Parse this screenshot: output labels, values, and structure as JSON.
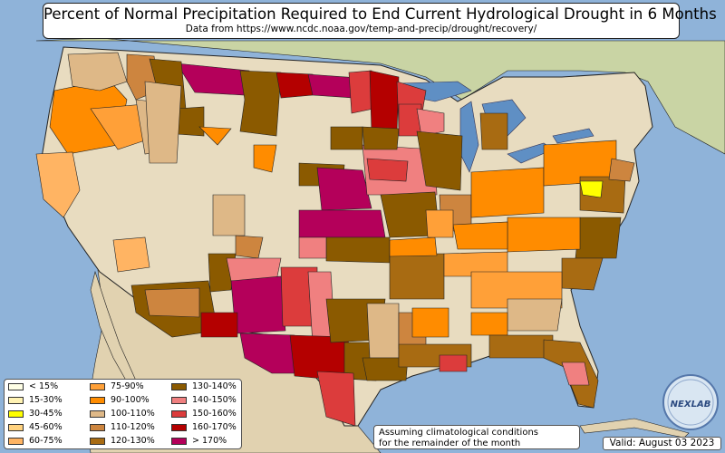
{
  "header": {
    "title": "Percent of Normal Precipitation Required to End Current Hydrological Drought in 6 Months",
    "subtitle": "Data from https://www.ncdc.noaa.gov/temp-and-precip/drought/recovery/"
  },
  "legend": {
    "items": [
      {
        "label": "< 15%",
        "color": "#ffffe6"
      },
      {
        "label": "15-30%",
        "color": "#fff2b3"
      },
      {
        "label": "30-45%",
        "color": "#ffff00"
      },
      {
        "label": "45-60%",
        "color": "#ffd27f"
      },
      {
        "label": "60-75%",
        "color": "#ffb463"
      },
      {
        "label": "75-90%",
        "color": "#ffa038"
      },
      {
        "label": "90-100%",
        "color": "#ff8c00"
      },
      {
        "label": "100-110%",
        "color": "#deb887"
      },
      {
        "label": "110-120%",
        "color": "#cd853f"
      },
      {
        "label": "120-130%",
        "color": "#a86b12"
      },
      {
        "label": "130-140%",
        "color": "#8b5a00"
      },
      {
        "label": "140-150%",
        "color": "#f08080"
      },
      {
        "label": "150-160%",
        "color": "#dc3c3c"
      },
      {
        "label": "160-170%",
        "color": "#b40000"
      },
      {
        "label": "> 170%",
        "color": "#b4005a"
      }
    ]
  },
  "note": {
    "line1": "Assuming climatological conditions",
    "line2": "for the remainder of the month"
  },
  "valid": "Valid: August 03 2023",
  "logo": {
    "text": "NEXLAB"
  },
  "colors": {
    "ocean": "#8fb3d9",
    "land": "#e8dcc0",
    "mountains": "#c9b994",
    "canada": "#c8d6a4",
    "mexico": "#e1d2b0",
    "lakes": "#5f8fc4"
  }
}
